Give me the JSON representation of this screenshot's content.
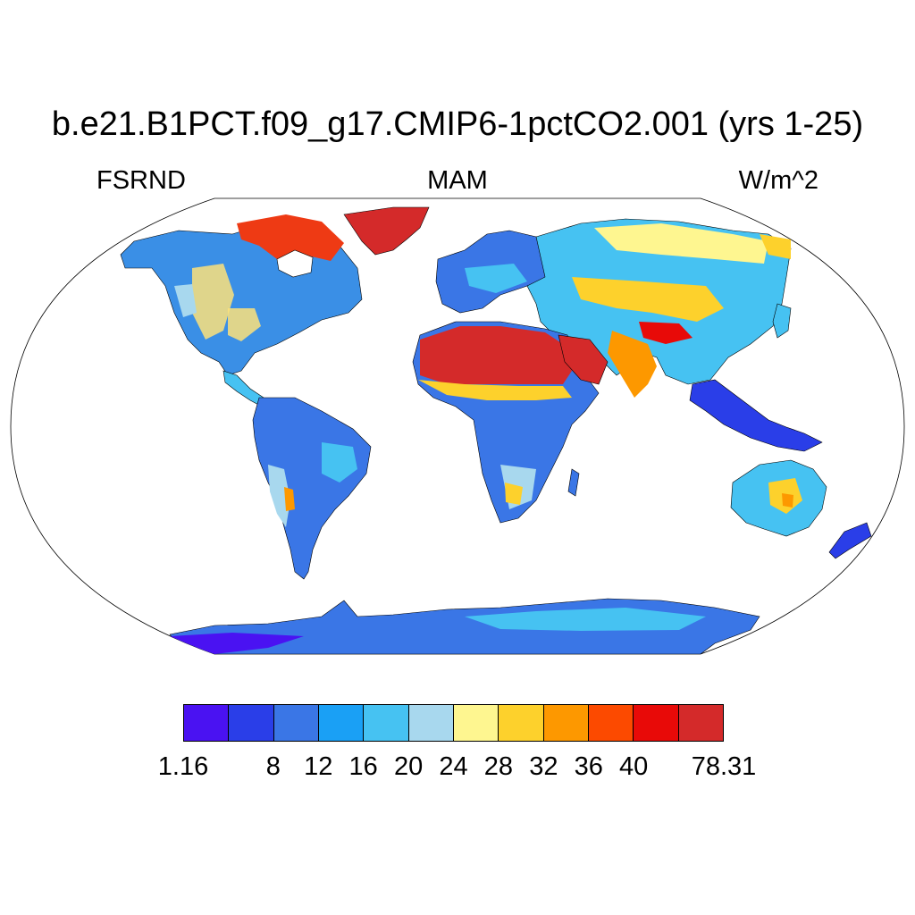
{
  "title": "b.e21.B1PCT.f09_g17.CMIP6-1pctCO2.001 (yrs 1-25)",
  "left_label": "FSRND",
  "center_label": "MAM",
  "right_label": "W/m^2",
  "projection": "Robinson",
  "colorbar": {
    "colors": [
      "#4a12f2",
      "#2a3ee8",
      "#3a76e6",
      "#1aa0f5",
      "#46c2f2",
      "#a8d8ee",
      "#fef690",
      "#fdd12c",
      "#fd9800",
      "#fc4a00",
      "#e80a08",
      "#d42a2a"
    ],
    "labels": [
      "1.16",
      "8",
      "12",
      "16",
      "20",
      "24",
      "28",
      "32",
      "36",
      "40",
      "78.31"
    ]
  }
}
